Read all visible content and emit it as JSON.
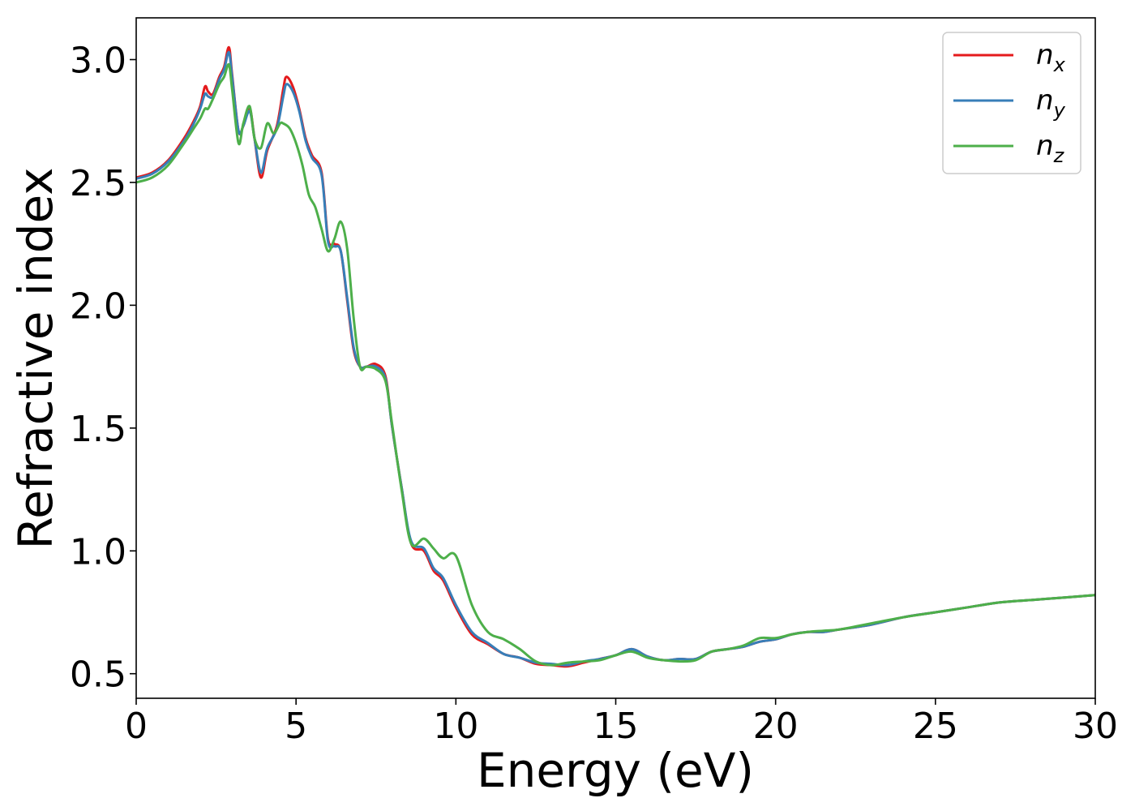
{
  "chart_data": {
    "type": "line",
    "xlabel": "Energy (eV)",
    "ylabel": "Refractive index",
    "xlim": [
      0,
      30
    ],
    "ylim": [
      0.4,
      3.17
    ],
    "xticks": [
      "0",
      "5",
      "10",
      "15",
      "20",
      "25",
      "30"
    ],
    "yticks": [
      "0.5",
      "1.0",
      "1.5",
      "2.0",
      "2.5",
      "3.0"
    ],
    "grid": false,
    "legend_position": "top-right",
    "series": [
      {
        "name": "n",
        "sub": "x",
        "color": "#e41a1c",
        "x": [
          0,
          0.5,
          1,
          1.5,
          1.8,
          2,
          2.15,
          2.25,
          2.4,
          2.6,
          2.75,
          2.9,
          3,
          3.2,
          3.35,
          3.55,
          3.7,
          3.9,
          4.1,
          4.4,
          4.6,
          4.7,
          4.9,
          5.1,
          5.3,
          5.5,
          5.8,
          6,
          6.2,
          6.4,
          6.6,
          6.8,
          7,
          7.2,
          7.5,
          7.8,
          8,
          8.3,
          8.6,
          9,
          9.3,
          9.6,
          10,
          10.5,
          11,
          11.5,
          12,
          12.5,
          13,
          13.5,
          14,
          14.5,
          15,
          15.5,
          16,
          16.5,
          17,
          17.5,
          18,
          18.5,
          19,
          19.5,
          20,
          20.5,
          21,
          21.5,
          22,
          23,
          24,
          25,
          26,
          27,
          28,
          29,
          30
        ],
        "values": [
          2.52,
          2.54,
          2.59,
          2.68,
          2.75,
          2.81,
          2.89,
          2.87,
          2.86,
          2.93,
          2.97,
          3.05,
          2.94,
          2.71,
          2.73,
          2.8,
          2.68,
          2.52,
          2.63,
          2.73,
          2.88,
          2.93,
          2.89,
          2.8,
          2.68,
          2.61,
          2.54,
          2.27,
          2.25,
          2.22,
          2.02,
          1.82,
          1.75,
          1.75,
          1.76,
          1.71,
          1.51,
          1.26,
          1.03,
          1.0,
          0.92,
          0.88,
          0.77,
          0.66,
          0.62,
          0.58,
          0.565,
          0.54,
          0.535,
          0.53,
          0.545,
          0.56,
          0.575,
          0.6,
          0.57,
          0.555,
          0.56,
          0.56,
          0.59,
          0.6,
          0.61,
          0.63,
          0.64,
          0.66,
          0.67,
          0.67,
          0.68,
          0.7,
          0.73,
          0.75,
          0.77,
          0.79,
          0.8,
          0.81,
          0.82
        ]
      },
      {
        "name": "n",
        "sub": "y",
        "color": "#377eb8",
        "x": [
          0,
          0.5,
          1,
          1.5,
          1.8,
          2,
          2.15,
          2.25,
          2.4,
          2.6,
          2.75,
          2.9,
          3,
          3.2,
          3.35,
          3.55,
          3.7,
          3.9,
          4.1,
          4.4,
          4.6,
          4.7,
          4.9,
          5.1,
          5.3,
          5.5,
          5.8,
          6,
          6.2,
          6.4,
          6.6,
          6.8,
          7,
          7.2,
          7.5,
          7.8,
          8,
          8.3,
          8.6,
          9,
          9.3,
          9.6,
          10,
          10.5,
          11,
          11.5,
          12,
          12.5,
          13,
          13.5,
          14,
          14.5,
          15,
          15.5,
          16,
          16.5,
          17,
          17.5,
          18,
          18.5,
          19,
          19.5,
          20,
          20.5,
          21,
          21.5,
          22,
          23,
          24,
          25,
          26,
          27,
          28,
          29,
          30
        ],
        "values": [
          2.515,
          2.535,
          2.585,
          2.67,
          2.74,
          2.8,
          2.86,
          2.85,
          2.85,
          2.92,
          2.96,
          3.03,
          2.93,
          2.71,
          2.73,
          2.79,
          2.68,
          2.54,
          2.64,
          2.72,
          2.85,
          2.9,
          2.87,
          2.79,
          2.67,
          2.6,
          2.53,
          2.26,
          2.24,
          2.22,
          2.03,
          1.83,
          1.75,
          1.75,
          1.75,
          1.7,
          1.51,
          1.26,
          1.04,
          1.01,
          0.93,
          0.89,
          0.78,
          0.67,
          0.625,
          0.58,
          0.565,
          0.545,
          0.54,
          0.535,
          0.55,
          0.56,
          0.575,
          0.6,
          0.57,
          0.555,
          0.56,
          0.56,
          0.59,
          0.6,
          0.61,
          0.63,
          0.64,
          0.66,
          0.67,
          0.67,
          0.68,
          0.7,
          0.73,
          0.75,
          0.77,
          0.79,
          0.8,
          0.81,
          0.82
        ]
      },
      {
        "name": "n",
        "sub": "z",
        "color": "#4daf4a",
        "x": [
          0,
          0.5,
          1,
          1.5,
          1.8,
          2,
          2.15,
          2.25,
          2.4,
          2.6,
          2.75,
          2.9,
          3,
          3.2,
          3.35,
          3.55,
          3.7,
          3.9,
          4.1,
          4.3,
          4.5,
          4.6,
          4.8,
          5,
          5.2,
          5.4,
          5.6,
          5.8,
          6,
          6.2,
          6.4,
          6.6,
          6.8,
          7,
          7.2,
          7.5,
          7.8,
          8,
          8.3,
          8.6,
          9,
          9.3,
          9.6,
          10,
          10.5,
          11,
          11.5,
          12,
          12.5,
          13,
          13.5,
          14,
          14.5,
          15,
          15.5,
          16,
          16.5,
          17,
          17.5,
          18,
          18.5,
          19,
          19.5,
          20,
          20.5,
          21,
          21.5,
          22,
          23,
          24,
          25,
          26,
          27,
          28,
          29,
          30
        ],
        "values": [
          2.5,
          2.52,
          2.57,
          2.66,
          2.72,
          2.76,
          2.8,
          2.8,
          2.84,
          2.9,
          2.93,
          2.98,
          2.88,
          2.66,
          2.74,
          2.81,
          2.68,
          2.64,
          2.74,
          2.7,
          2.74,
          2.74,
          2.72,
          2.66,
          2.57,
          2.45,
          2.4,
          2.31,
          2.22,
          2.27,
          2.34,
          2.23,
          1.95,
          1.75,
          1.75,
          1.74,
          1.69,
          1.52,
          1.25,
          1.03,
          1.05,
          1.01,
          0.97,
          0.98,
          0.78,
          0.67,
          0.64,
          0.6,
          0.55,
          0.535,
          0.545,
          0.55,
          0.555,
          0.575,
          0.59,
          0.565,
          0.555,
          0.55,
          0.555,
          0.59,
          0.6,
          0.615,
          0.645,
          0.645,
          0.66,
          0.67,
          0.675,
          0.68,
          0.705,
          0.73,
          0.75,
          0.77,
          0.79,
          0.8,
          0.81,
          0.82
        ]
      }
    ]
  }
}
